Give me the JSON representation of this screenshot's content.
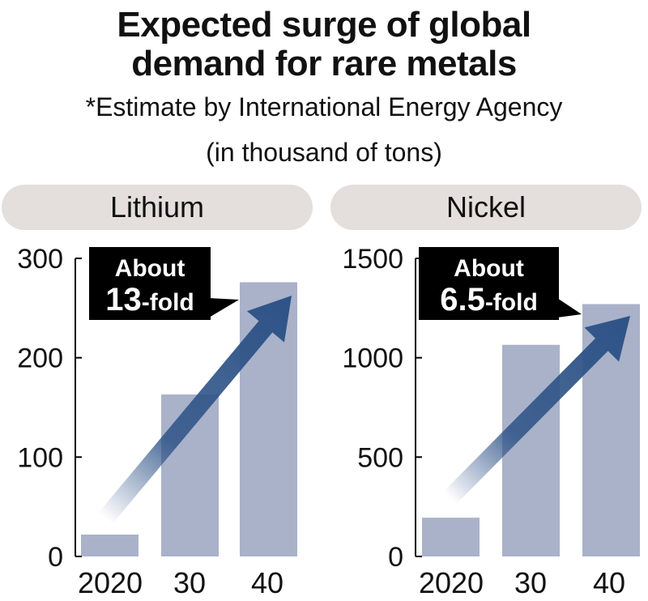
{
  "title_line1": "Expected surge of global",
  "title_line2": "demand for rare metals",
  "subtitle": "*Estimate by International Energy Agency",
  "units": "(in thousand of tons)",
  "colors": {
    "bar": "#a9b2c9",
    "arrow": "#2e5387",
    "panel_header": "#e4dfdc",
    "callout_bg": "#000000",
    "callout_text": "#ffffff"
  },
  "chart_data": [
    {
      "type": "bar",
      "title": "Lithium",
      "categories": [
        "2020",
        "30",
        "40"
      ],
      "values": [
        22,
        163,
        276
      ],
      "ylim": [
        0,
        300
      ],
      "yticks": [
        "0",
        "100",
        "200",
        "300"
      ],
      "callout": {
        "line1": "About",
        "line2_number": "13",
        "line2_suffix": "-fold"
      }
    },
    {
      "type": "bar",
      "title": "Nickel",
      "categories": [
        "2020",
        "30",
        "40"
      ],
      "values": [
        195,
        1065,
        1270
      ],
      "ylim": [
        0,
        1500
      ],
      "yticks": [
        "0",
        "500",
        "1000",
        "1500"
      ],
      "callout": {
        "line1": "About",
        "line2_number": "6.5",
        "line2_suffix": "-fold"
      }
    }
  ]
}
